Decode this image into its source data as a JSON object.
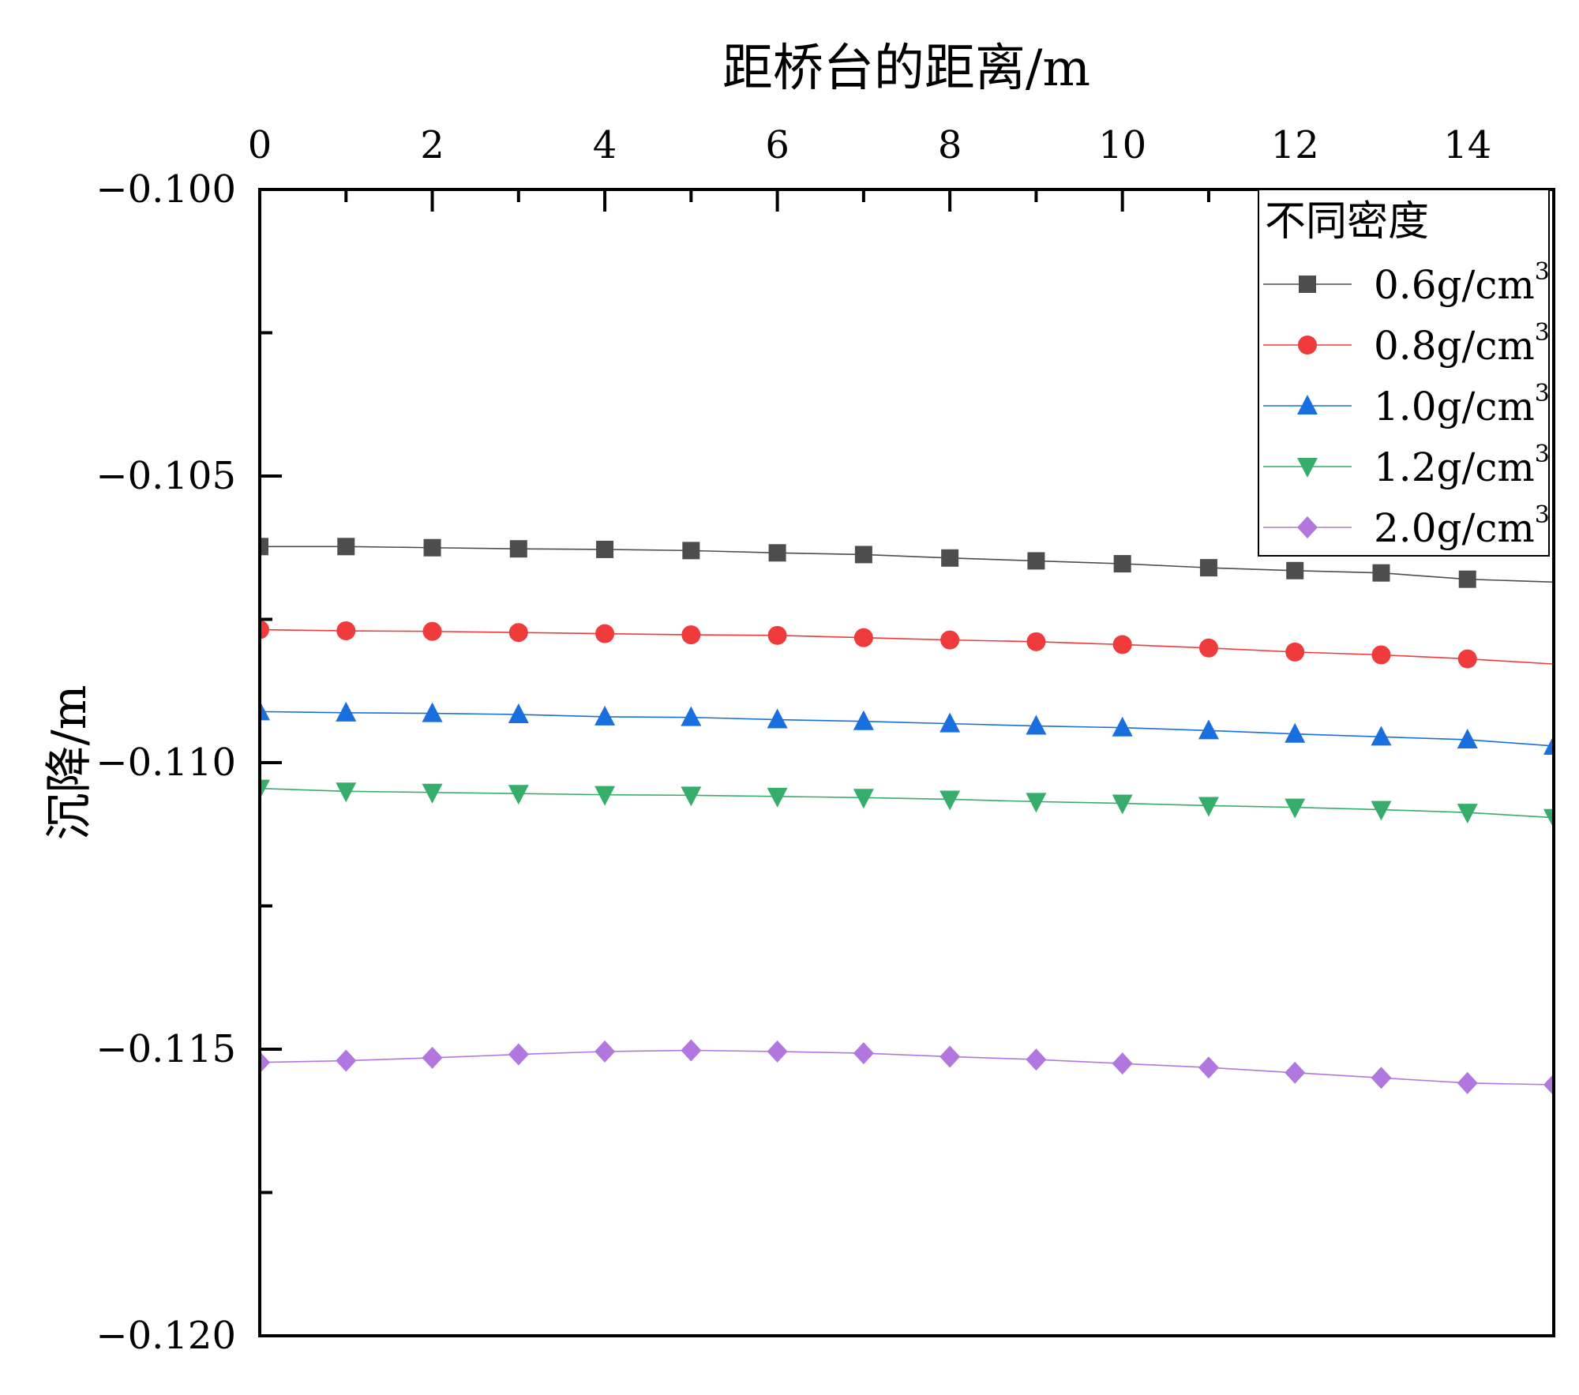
{
  "chart_data": {
    "type": "line",
    "title": "",
    "xlabel": "距桥台的距离/m",
    "ylabel": "沉降/m",
    "xlim": [
      0,
      15
    ],
    "ylim": [
      -0.12,
      -0.1
    ],
    "x_ticks": [
      "0",
      "2",
      "4",
      "6",
      "8",
      "10",
      "12",
      "14"
    ],
    "x_tick_values": [
      0,
      2,
      4,
      6,
      8,
      10,
      12,
      14
    ],
    "y_ticks": [
      "-0.100",
      "-0.105",
      "-0.110",
      "-0.115",
      "-0.120"
    ],
    "y_tick_values": [
      -0.1,
      -0.105,
      -0.11,
      -0.115,
      -0.12
    ],
    "x_axis_position": "top",
    "grid": false,
    "legend": {
      "title": "不同密度",
      "placement": "top-right"
    },
    "x": [
      0,
      1,
      2,
      3,
      4,
      5,
      6,
      7,
      8,
      9,
      10,
      11,
      12,
      13,
      14,
      15
    ],
    "series": [
      {
        "name": "0.6g/cm",
        "sup": "3",
        "color": "#4d4d4d",
        "marker": "square",
        "values": [
          -0.10623,
          -0.10623,
          -0.10625,
          -0.10627,
          -0.10628,
          -0.1063,
          -0.10634,
          -0.10637,
          -0.10643,
          -0.10648,
          -0.10653,
          -0.1066,
          -0.10665,
          -0.10669,
          -0.1068,
          -0.10685
        ]
      },
      {
        "name": "0.8g/cm",
        "sup": "3",
        "color": "#ef3b3b",
        "marker": "circle",
        "values": [
          -0.10768,
          -0.1077,
          -0.10771,
          -0.10773,
          -0.10775,
          -0.10777,
          -0.10778,
          -0.10782,
          -0.10786,
          -0.10789,
          -0.10794,
          -0.108,
          -0.10807,
          -0.10812,
          -0.10819,
          -0.10828
        ]
      },
      {
        "name": "1.0g/cm",
        "sup": "3",
        "color": "#1a6fdf",
        "marker": "triangle-up",
        "values": [
          -0.10911,
          -0.10913,
          -0.10914,
          -0.10916,
          -0.1092,
          -0.10921,
          -0.10925,
          -0.10928,
          -0.10932,
          -0.10936,
          -0.10939,
          -0.10944,
          -0.1095,
          -0.10955,
          -0.1096,
          -0.10971
        ]
      },
      {
        "name": "1.2g/cm",
        "sup": "3",
        "color": "#37ad6b",
        "marker": "triangle-down",
        "values": [
          -0.11045,
          -0.1105,
          -0.11052,
          -0.11054,
          -0.11056,
          -0.11057,
          -0.11059,
          -0.11061,
          -0.11064,
          -0.11068,
          -0.11071,
          -0.11075,
          -0.11078,
          -0.11082,
          -0.11087,
          -0.11096
        ]
      },
      {
        "name": "2.0g/cm",
        "sup": "3",
        "color": "#b177de",
        "marker": "diamond",
        "values": [
          -0.11523,
          -0.1152,
          -0.11515,
          -0.11509,
          -0.11504,
          -0.11502,
          -0.11504,
          -0.11507,
          -0.11513,
          -0.11518,
          -0.11525,
          -0.11532,
          -0.11541,
          -0.1155,
          -0.11559,
          -0.11562
        ]
      }
    ]
  }
}
